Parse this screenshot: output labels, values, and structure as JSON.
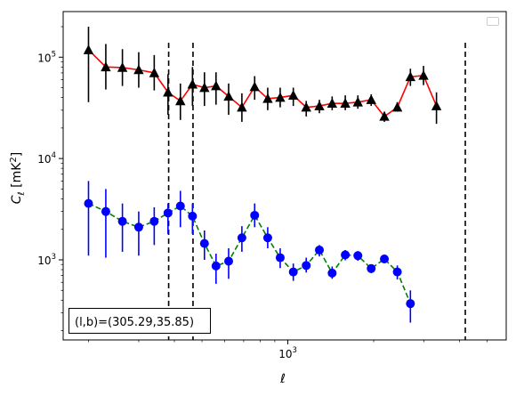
{
  "chart_data": {
    "type": "line",
    "title": "",
    "xlabel": "ℓ",
    "ylabel_main": "C",
    "ylabel_sub": "ℓ",
    "ylabel_unit_pre": " [mK",
    "ylabel_unit_sup": "2",
    "ylabel_unit_post": "]",
    "x_scale": "log",
    "y_scale": "log",
    "xlim": [
      163,
      5830
    ],
    "ylim": [
      162,
      282000
    ],
    "annotation": "(l,b)=(305.29,35.85)",
    "legend": {
      "placement": "top-right",
      "entries": []
    },
    "x_ticks": [
      {
        "value": 1000,
        "base": "10",
        "exp": "3"
      }
    ],
    "y_ticks": [
      {
        "value": 1000,
        "base": "10",
        "exp": "3"
      },
      {
        "value": 10000,
        "base": "10",
        "exp": "4"
      },
      {
        "value": 100000,
        "base": "10",
        "exp": "5"
      }
    ],
    "vlines": [
      382,
      465,
      4190
    ],
    "series": [
      {
        "line_color": "#ff0000",
        "line_style": "solid",
        "marker": "triangle",
        "marker_color": "#000000",
        "errbar_color": "#000000",
        "points": [
          {
            "x": 200,
            "y": 118000,
            "lo": 36000,
            "hi": 200000
          },
          {
            "x": 230,
            "y": 80000,
            "lo": 48000,
            "hi": 135000
          },
          {
            "x": 263,
            "y": 79000,
            "lo": 52000,
            "hi": 120000
          },
          {
            "x": 300,
            "y": 75000,
            "lo": 50000,
            "hi": 112000
          },
          {
            "x": 340,
            "y": 70000,
            "lo": 47000,
            "hi": 105000
          },
          {
            "x": 380,
            "y": 45000,
            "lo": 27000,
            "hi": 68000
          },
          {
            "x": 420,
            "y": 37000,
            "lo": 24000,
            "hi": 55000
          },
          {
            "x": 463,
            "y": 54000,
            "lo": 33000,
            "hi": 80000
          },
          {
            "x": 510,
            "y": 50000,
            "lo": 33000,
            "hi": 71000
          },
          {
            "x": 560,
            "y": 52000,
            "lo": 34000,
            "hi": 71000
          },
          {
            "x": 620,
            "y": 41000,
            "lo": 27000,
            "hi": 55000
          },
          {
            "x": 690,
            "y": 32000,
            "lo": 23000,
            "hi": 44000
          },
          {
            "x": 765,
            "y": 51000,
            "lo": 38000,
            "hi": 65000
          },
          {
            "x": 850,
            "y": 39000,
            "lo": 30000,
            "hi": 50000
          },
          {
            "x": 940,
            "y": 40000,
            "lo": 32000,
            "hi": 50000
          },
          {
            "x": 1045,
            "y": 42000,
            "lo": 33000,
            "hi": 50000
          },
          {
            "x": 1160,
            "y": 32000,
            "lo": 26000,
            "hi": 37000
          },
          {
            "x": 1290,
            "y": 33000,
            "lo": 28000,
            "hi": 38000
          },
          {
            "x": 1430,
            "y": 35000,
            "lo": 30000,
            "hi": 41000
          },
          {
            "x": 1590,
            "y": 35000,
            "lo": 30000,
            "hi": 42000
          },
          {
            "x": 1760,
            "y": 36000,
            "lo": 31000,
            "hi": 42000
          },
          {
            "x": 1960,
            "y": 38000,
            "lo": 33000,
            "hi": 43000
          },
          {
            "x": 2180,
            "y": 26000,
            "lo": 23000,
            "hi": 29000
          },
          {
            "x": 2420,
            "y": 32000,
            "lo": 29000,
            "hi": 36000
          },
          {
            "x": 2690,
            "y": 64000,
            "lo": 52000,
            "hi": 77000
          },
          {
            "x": 2990,
            "y": 66000,
            "lo": 53000,
            "hi": 82000
          },
          {
            "x": 3320,
            "y": 33000,
            "lo": 22000,
            "hi": 45000
          }
        ]
      },
      {
        "line_color": "#008000",
        "line_style": "dashed",
        "marker": "circle",
        "marker_color": "#0000ff",
        "errbar_color": "#0000ff",
        "points": [
          {
            "x": 200,
            "y": 3600,
            "lo": 1100,
            "hi": 6000
          },
          {
            "x": 230,
            "y": 3000,
            "lo": 1050,
            "hi": 5000
          },
          {
            "x": 263,
            "y": 2400,
            "lo": 1200,
            "hi": 3600
          },
          {
            "x": 300,
            "y": 2100,
            "lo": 1100,
            "hi": 3000
          },
          {
            "x": 340,
            "y": 2400,
            "lo": 1400,
            "hi": 3300
          },
          {
            "x": 380,
            "y": 2900,
            "lo": 1800,
            "hi": 3600
          },
          {
            "x": 420,
            "y": 3400,
            "lo": 2100,
            "hi": 4800
          },
          {
            "x": 463,
            "y": 2700,
            "lo": 1800,
            "hi": 3600
          },
          {
            "x": 510,
            "y": 1450,
            "lo": 1000,
            "hi": 1950
          },
          {
            "x": 560,
            "y": 870,
            "lo": 580,
            "hi": 1150
          },
          {
            "x": 620,
            "y": 970,
            "lo": 650,
            "hi": 1300
          },
          {
            "x": 690,
            "y": 1650,
            "lo": 1200,
            "hi": 2150
          },
          {
            "x": 765,
            "y": 2750,
            "lo": 2100,
            "hi": 3600
          },
          {
            "x": 850,
            "y": 1650,
            "lo": 1300,
            "hi": 2100
          },
          {
            "x": 940,
            "y": 1050,
            "lo": 830,
            "hi": 1300
          },
          {
            "x": 1045,
            "y": 760,
            "lo": 620,
            "hi": 920
          },
          {
            "x": 1160,
            "y": 880,
            "lo": 750,
            "hi": 1050
          },
          {
            "x": 1290,
            "y": 1250,
            "lo": 1080,
            "hi": 1400
          },
          {
            "x": 1430,
            "y": 740,
            "lo": 650,
            "hi": 860
          },
          {
            "x": 1590,
            "y": 1120,
            "lo": 990,
            "hi": 1250
          },
          {
            "x": 1760,
            "y": 1100,
            "lo": 980,
            "hi": 1220
          },
          {
            "x": 1960,
            "y": 820,
            "lo": 740,
            "hi": 900
          },
          {
            "x": 2180,
            "y": 1020,
            "lo": 930,
            "hi": 1110
          },
          {
            "x": 2420,
            "y": 760,
            "lo": 640,
            "hi": 880
          },
          {
            "x": 2690,
            "y": 370,
            "lo": 240,
            "hi": 500
          }
        ]
      }
    ]
  }
}
